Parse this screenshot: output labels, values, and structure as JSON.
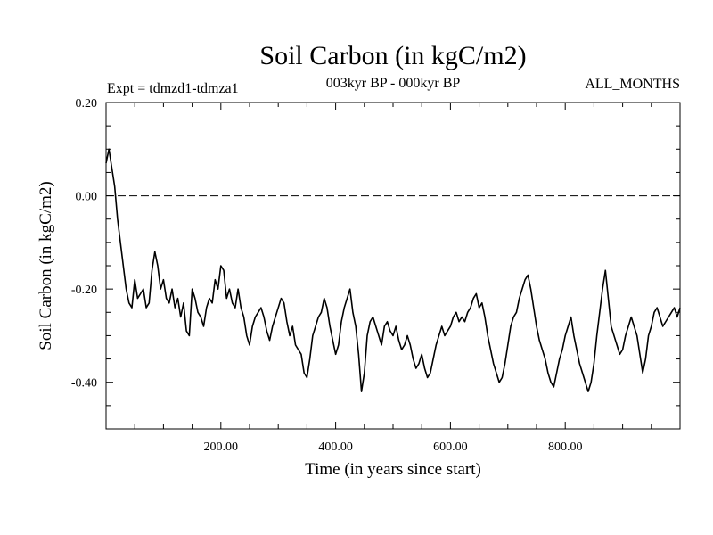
{
  "chart_data": {
    "type": "line",
    "title": "Soil Carbon (in kgC/m2)",
    "experiment_label": "Expt = tdmzd1-tdmza1",
    "period_label": "003kyr BP - 000kyr BP",
    "months_label": "ALL_MONTHS",
    "xlabel": "Time (in years since start)",
    "ylabel": "Soil Carbon (in kgC/m2)",
    "xlim": [
      0,
      1000
    ],
    "ylim": [
      -0.5,
      0.2
    ],
    "x_ticks": [
      200,
      400,
      600,
      800
    ],
    "x_tick_labels": [
      "200.00",
      "400.00",
      "600.00",
      "800.00"
    ],
    "y_ticks": [
      0.2,
      0.0,
      -0.2,
      -0.4
    ],
    "y_tick_labels": [
      "0.20",
      "0.00",
      "-0.20",
      "-0.40"
    ],
    "reference_line": {
      "y": 0.0,
      "style": "dashed"
    },
    "series": [
      {
        "name": "Soil Carbon",
        "x": [
          0,
          5,
          10,
          15,
          20,
          25,
          30,
          35,
          40,
          45,
          50,
          55,
          60,
          65,
          70,
          75,
          80,
          85,
          90,
          95,
          100,
          105,
          110,
          115,
          120,
          125,
          130,
          135,
          140,
          145,
          150,
          155,
          160,
          165,
          170,
          175,
          180,
          185,
          190,
          195,
          200,
          205,
          210,
          215,
          220,
          225,
          230,
          235,
          240,
          245,
          250,
          255,
          260,
          265,
          270,
          275,
          280,
          285,
          290,
          295,
          300,
          305,
          310,
          315,
          320,
          325,
          330,
          335,
          340,
          345,
          350,
          355,
          360,
          365,
          370,
          375,
          380,
          385,
          390,
          395,
          400,
          405,
          410,
          415,
          420,
          425,
          430,
          435,
          440,
          445,
          450,
          455,
          460,
          465,
          470,
          475,
          480,
          485,
          490,
          495,
          500,
          505,
          510,
          515,
          520,
          525,
          530,
          535,
          540,
          545,
          550,
          555,
          560,
          565,
          570,
          575,
          580,
          585,
          590,
          595,
          600,
          605,
          610,
          615,
          620,
          625,
          630,
          635,
          640,
          645,
          650,
          655,
          660,
          665,
          670,
          675,
          680,
          685,
          690,
          695,
          700,
          705,
          710,
          715,
          720,
          725,
          730,
          735,
          740,
          745,
          750,
          755,
          760,
          765,
          770,
          775,
          780,
          785,
          790,
          795,
          800,
          805,
          810,
          815,
          820,
          825,
          830,
          835,
          840,
          845,
          850,
          855,
          860,
          865,
          870,
          875,
          880,
          885,
          890,
          895,
          900,
          905,
          910,
          915,
          920,
          925,
          930,
          935,
          940,
          945,
          950,
          955,
          960,
          965,
          970,
          975,
          980,
          985,
          990,
          995,
          1000
        ],
        "values": [
          0.07,
          0.1,
          0.06,
          0.02,
          -0.05,
          -0.1,
          -0.15,
          -0.2,
          -0.23,
          -0.24,
          -0.18,
          -0.22,
          -0.21,
          -0.2,
          -0.24,
          -0.23,
          -0.16,
          -0.12,
          -0.15,
          -0.2,
          -0.18,
          -0.22,
          -0.23,
          -0.2,
          -0.24,
          -0.22,
          -0.26,
          -0.23,
          -0.29,
          -0.3,
          -0.2,
          -0.22,
          -0.25,
          -0.26,
          -0.28,
          -0.24,
          -0.22,
          -0.23,
          -0.18,
          -0.2,
          -0.15,
          -0.16,
          -0.22,
          -0.2,
          -0.23,
          -0.24,
          -0.2,
          -0.24,
          -0.26,
          -0.3,
          -0.32,
          -0.28,
          -0.26,
          -0.25,
          -0.24,
          -0.26,
          -0.29,
          -0.31,
          -0.28,
          -0.26,
          -0.24,
          -0.22,
          -0.23,
          -0.27,
          -0.3,
          -0.28,
          -0.32,
          -0.33,
          -0.34,
          -0.38,
          -0.39,
          -0.35,
          -0.3,
          -0.28,
          -0.26,
          -0.25,
          -0.22,
          -0.24,
          -0.28,
          -0.31,
          -0.34,
          -0.32,
          -0.27,
          -0.24,
          -0.22,
          -0.2,
          -0.25,
          -0.28,
          -0.34,
          -0.42,
          -0.38,
          -0.3,
          -0.27,
          -0.26,
          -0.28,
          -0.3,
          -0.32,
          -0.28,
          -0.27,
          -0.29,
          -0.3,
          -0.28,
          -0.31,
          -0.33,
          -0.32,
          -0.3,
          -0.32,
          -0.35,
          -0.37,
          -0.36,
          -0.34,
          -0.37,
          -0.39,
          -0.38,
          -0.35,
          -0.32,
          -0.3,
          -0.28,
          -0.3,
          -0.29,
          -0.28,
          -0.26,
          -0.25,
          -0.27,
          -0.26,
          -0.27,
          -0.25,
          -0.24,
          -0.22,
          -0.21,
          -0.24,
          -0.23,
          -0.26,
          -0.3,
          -0.33,
          -0.36,
          -0.38,
          -0.4,
          -0.39,
          -0.36,
          -0.32,
          -0.28,
          -0.26,
          -0.25,
          -0.22,
          -0.2,
          -0.18,
          -0.17,
          -0.2,
          -0.24,
          -0.28,
          -0.31,
          -0.33,
          -0.35,
          -0.38,
          -0.4,
          -0.41,
          -0.38,
          -0.35,
          -0.33,
          -0.3,
          -0.28,
          -0.26,
          -0.3,
          -0.33,
          -0.36,
          -0.38,
          -0.4,
          -0.42,
          -0.4,
          -0.36,
          -0.3,
          -0.25,
          -0.2,
          -0.16,
          -0.22,
          -0.28,
          -0.3,
          -0.32,
          -0.34,
          -0.33,
          -0.3,
          -0.28,
          -0.26,
          -0.28,
          -0.3,
          -0.34,
          -0.38,
          -0.35,
          -0.3,
          -0.28,
          -0.25,
          -0.24,
          -0.26,
          -0.28,
          -0.27,
          -0.26,
          -0.25,
          -0.24,
          -0.26,
          -0.24
        ]
      }
    ]
  }
}
